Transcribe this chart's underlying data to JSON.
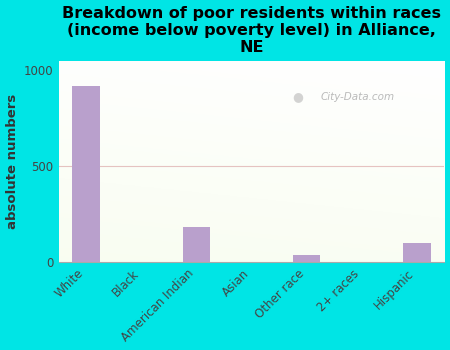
{
  "title": "Breakdown of poor residents within races\n(income below poverty level) in Alliance,\nNE",
  "categories": [
    "White",
    "Black",
    "American Indian",
    "Asian",
    "Other race",
    "2+ races",
    "Hispanic"
  ],
  "values": [
    920,
    0,
    185,
    0,
    35,
    0,
    100
  ],
  "bar_color": "#b9a0cc",
  "ylabel": "absolute numbers",
  "yticks": [
    0,
    500,
    1000
  ],
  "ylim": [
    0,
    1050
  ],
  "background_color": "#00e5e5",
  "watermark": "City-Data.com",
  "title_fontsize": 11.5,
  "ylabel_fontsize": 9.5,
  "tick_label_fontsize": 8.5
}
